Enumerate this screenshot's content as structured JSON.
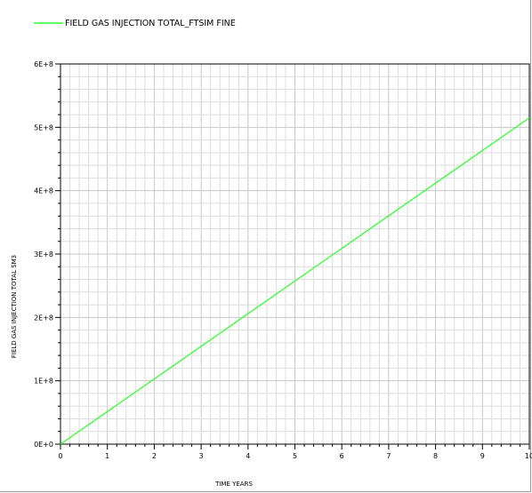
{
  "chart_data": {
    "type": "line",
    "legend": {
      "label": "FIELD GAS INJECTION TOTAL_FTSIM FINE",
      "placement": "top-left"
    },
    "xlabel": "TIME YEARS",
    "ylabel": "FIELD GAS INJECTION TOTAL SM3",
    "xlim": [
      0,
      10
    ],
    "ylim": [
      0,
      600000000
    ],
    "x_ticks": [
      0,
      1,
      2,
      3,
      4,
      5,
      6,
      7,
      8,
      9,
      10
    ],
    "x_tick_labels": [
      "0",
      "1",
      "2",
      "3",
      "4",
      "5",
      "6",
      "7",
      "8",
      "9",
      "10"
    ],
    "y_ticks": [
      0,
      100000000,
      200000000,
      300000000,
      400000000,
      500000000,
      600000000
    ],
    "y_tick_labels": [
      "0E+0",
      "1E+8",
      "2E+8",
      "3E+8",
      "4E+8",
      "5E+8",
      "6E+8"
    ],
    "grid": true,
    "series": [
      {
        "name": "FIELD GAS INJECTION TOTAL_FTSIM FINE",
        "color": "#33ff33",
        "x": [
          0,
          10
        ],
        "y": [
          0,
          515000000
        ]
      }
    ]
  }
}
